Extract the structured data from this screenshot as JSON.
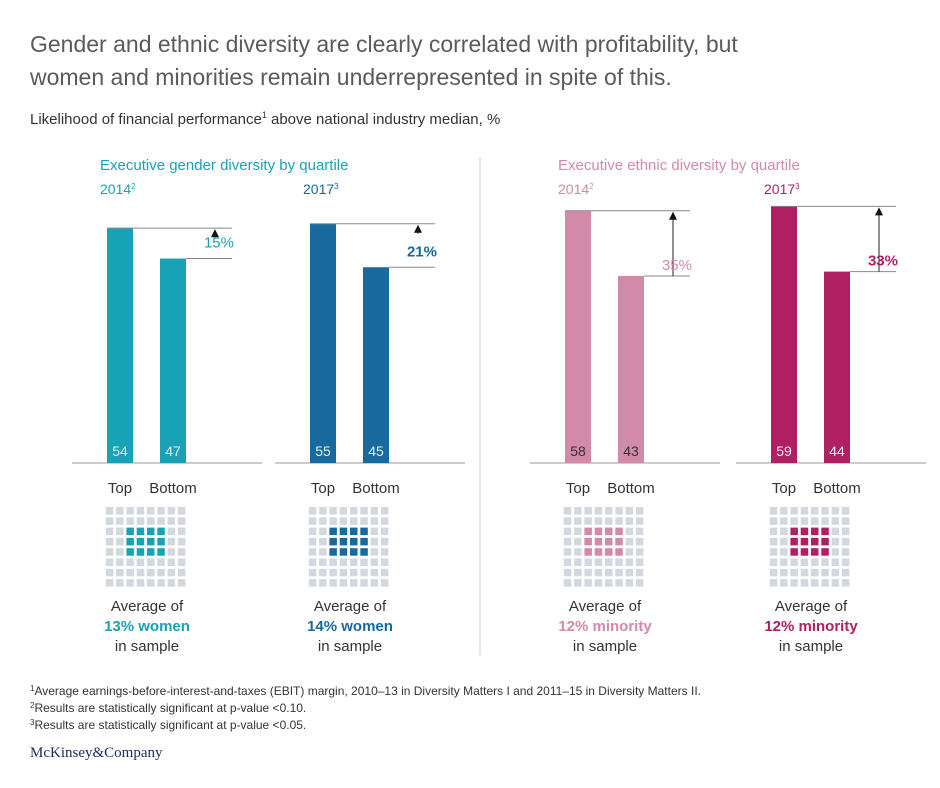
{
  "title": [
    "Gender and ethnic diversity are clearly correlated with profitability, but",
    "women and minorities remain underrepresented in spite of this."
  ],
  "subtitle": {
    "text": "Likelihood of financial performance",
    "note": "1",
    "rest": " above national industry median, %"
  },
  "chart_data": [
    {
      "type": "bar",
      "title": "Executive gender diversity by quartile",
      "year": "2014",
      "year_note": "2",
      "color": "#17a2b5",
      "categories": [
        "Top",
        "Bottom"
      ],
      "values": [
        54,
        47
      ],
      "difference_label": "15%",
      "caption": [
        "Average of",
        "13% women",
        "in sample"
      ]
    },
    {
      "type": "bar",
      "year": "2017",
      "year_note": "3",
      "color": "#17699e",
      "categories": [
        "Top",
        "Bottom"
      ],
      "values": [
        55,
        45
      ],
      "difference_label": "21%",
      "caption": [
        "Average of",
        "14% women",
        "in sample"
      ]
    },
    {
      "type": "bar",
      "title": "Executive ethnic diversity by quartile",
      "year": "2014",
      "year_note": "2",
      "color": "#d389a8",
      "categories": [
        "Top",
        "Bottom"
      ],
      "values": [
        58,
        43
      ],
      "difference_label": "35%",
      "caption": [
        "Average of",
        "12% minority",
        "in sample"
      ]
    },
    {
      "type": "bar",
      "year": "2017",
      "year_note": "3",
      "color": "#b11f63",
      "categories": [
        "Top",
        "Bottom"
      ],
      "values": [
        59,
        44
      ],
      "difference_label": "33%",
      "caption": [
        "Average of",
        "12% minority",
        "in sample"
      ]
    }
  ],
  "footnotes": [
    {
      "mark": "1",
      "text": "Average earnings-before-interest-and-taxes (EBIT) margin, 2010–13 in Diversity Matters I and 2011–15 in Diversity Matters II."
    },
    {
      "mark": "2",
      "text": "Results are statistically significant at p-value <0.10."
    },
    {
      "mark": "3",
      "text": "Results are statistically significant at p-value <0.05."
    }
  ],
  "brand": "McKinsey&Company"
}
